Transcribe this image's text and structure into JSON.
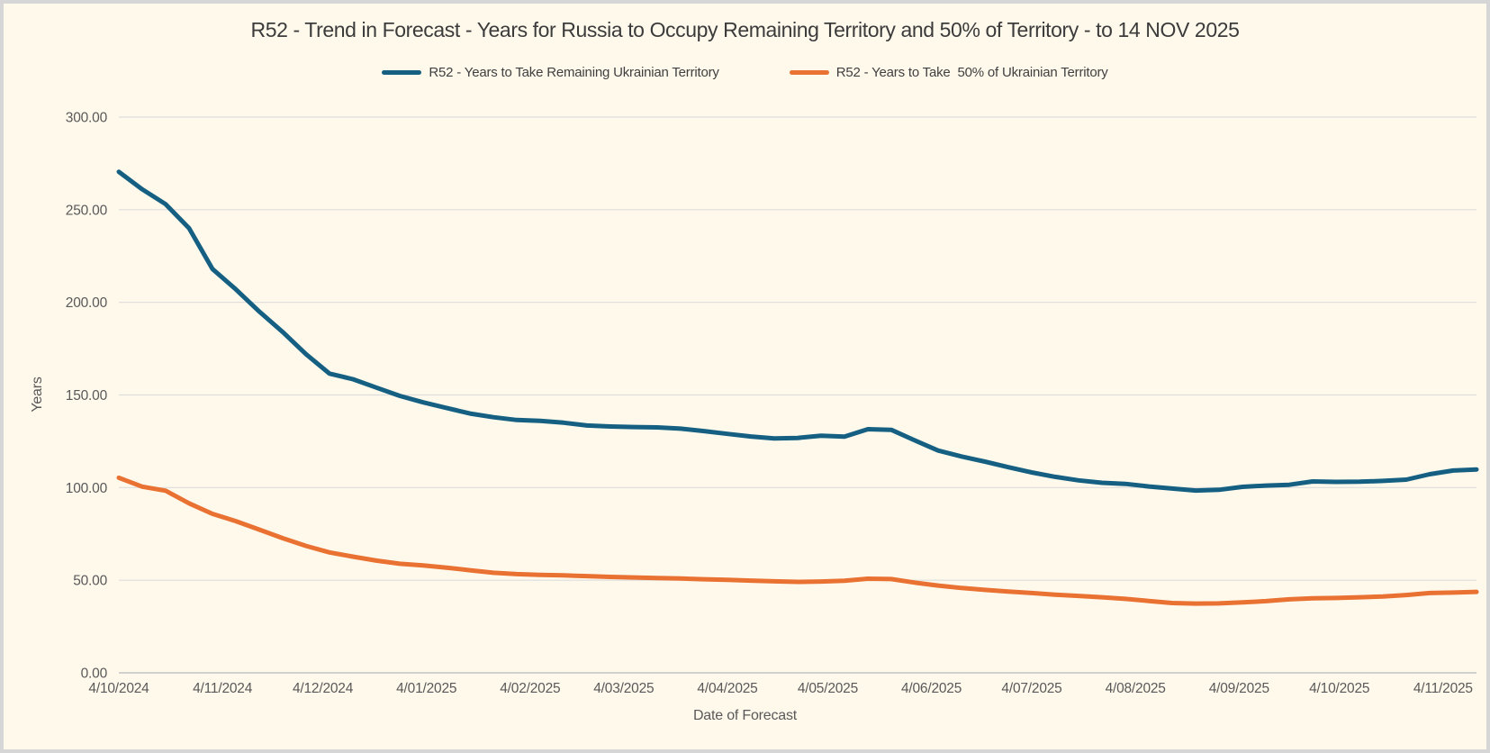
{
  "frame": {
    "background": "#FFF9EC",
    "border_color": "#D6D6D6"
  },
  "chart_data": {
    "type": "line",
    "title": "R52 - Trend in Forecast - Years for Russia to Occupy Remaining Territory and 50% of Territory - to 14 NOV 2025",
    "xlabel": "Date of Forecast",
    "ylabel": "Years",
    "ylim": [
      0,
      300
    ],
    "grid": true,
    "legend_position": "top",
    "x_axis": {
      "total_days": 406,
      "x_step_days": 7,
      "ticks": [
        {
          "label": "4/10/2024",
          "day": 0
        },
        {
          "label": "4/11/2024",
          "day": 31
        },
        {
          "label": "4/12/2024",
          "day": 61
        },
        {
          "label": "4/01/2025",
          "day": 92
        },
        {
          "label": "4/02/2025",
          "day": 123
        },
        {
          "label": "4/03/2025",
          "day": 151
        },
        {
          "label": "4/04/2025",
          "day": 182
        },
        {
          "label": "4/05/2025",
          "day": 212
        },
        {
          "label": "4/06/2025",
          "day": 243
        },
        {
          "label": "4/07/2025",
          "day": 273
        },
        {
          "label": "4/08/2025",
          "day": 304
        },
        {
          "label": "4/09/2025",
          "day": 335
        },
        {
          "label": "4/10/2025",
          "day": 365
        },
        {
          "label": "4/11/2025",
          "day": 396
        }
      ]
    },
    "y_axis": {
      "ticks": [
        {
          "label": "0.00",
          "value": 0
        },
        {
          "label": "50.00",
          "value": 50
        },
        {
          "label": "100.00",
          "value": 100
        },
        {
          "label": "150.00",
          "value": 150
        },
        {
          "label": "200.00",
          "value": 200
        },
        {
          "label": "250.00",
          "value": 250
        },
        {
          "label": "300.00",
          "value": 300
        }
      ]
    },
    "series": [
      {
        "name": "R52 - Years to Take Remaining Ukrainian Territory",
        "color": "#156082",
        "values": [
          270.5,
          261,
          253,
          240,
          218,
          207,
          195,
          184,
          172,
          161.5,
          158.5,
          154,
          149.5,
          146,
          143,
          140,
          138,
          136.5,
          136,
          135,
          133.5,
          133,
          132.7,
          132.5,
          131.8,
          130.5,
          129,
          127.6,
          126.5,
          126.8,
          128,
          127.5,
          131.5,
          131.2,
          125.5,
          120,
          116.8,
          114,
          111,
          108.2,
          105.8,
          103.9,
          102.6,
          102,
          100.6,
          99.5,
          98.4,
          98.8,
          100.4,
          101.1,
          101.5,
          103.3,
          103.1,
          103.2,
          103.6,
          104.3,
          107.2,
          109.2,
          109.8
        ]
      },
      {
        "name": "R52 - Years to Take  50% of Ukrainian Territory",
        "color": "#E97132",
        "values": [
          105.3,
          100.5,
          98.3,
          91.5,
          85.8,
          81.9,
          77.3,
          72.7,
          68.5,
          65,
          62.7,
          60.6,
          58.9,
          58,
          56.8,
          55.4,
          54,
          53.3,
          52.9,
          52.6,
          52.2,
          51.8,
          51.5,
          51.2,
          50.9,
          50.5,
          50.2,
          49.8,
          49.4,
          49.1,
          49.3,
          49.7,
          50.8,
          50.6,
          48.7,
          47.1,
          45.8,
          44.8,
          43.9,
          43.1,
          42.2,
          41.5,
          40.8,
          39.9,
          38.8,
          37.7,
          37.4,
          37.5,
          38,
          38.7,
          39.7,
          40.2,
          40.4,
          40.8,
          41.2,
          42,
          43.1,
          43.3,
          43.7
        ]
      }
    ],
    "colors": {
      "gridline": "#DDDDDD",
      "zero_line": "#C2C2C2",
      "title_text": "#3B3B3B",
      "axis_text": "#595959"
    }
  }
}
